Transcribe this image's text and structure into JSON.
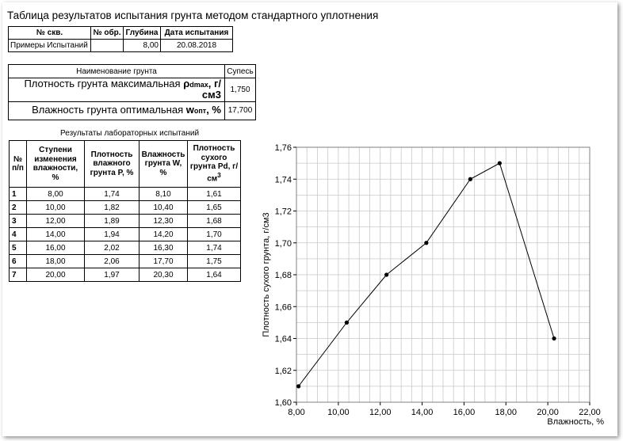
{
  "title": "Таблица результатов испытания грунта методом стандартного уплотнения",
  "sample_table": {
    "headers": [
      "№ скв.",
      "№ обр.",
      "Глубина",
      "Дата испытания"
    ],
    "row": [
      "Примеры Испытаний",
      "",
      "8,00",
      "20.08.2018"
    ]
  },
  "soil_table": {
    "name_label": "Наименование грунта",
    "name_value": "Супесь",
    "density_label": "Плотность грунта максимальная ",
    "density_symbol": "ρ",
    "density_sub": "dmax",
    "density_unit": ", г/см3",
    "density_value": "1,750",
    "moisture_label": "Влажность грунта оптимальная ",
    "moisture_symbol": "w",
    "moisture_sub": "опт",
    "moisture_unit": ", %",
    "moisture_value": "17,700"
  },
  "lab_results": {
    "title": "Результаты лабораторных испытаний",
    "headers": [
      "№ п/п",
      "Ступени изменения влажности, %",
      "Плотность влажного грунта P, %",
      "Влажность грунта W, %",
      "Плотность сухого грунта Pd, г/см",
      "3"
    ],
    "rows": [
      [
        "1",
        "8,00",
        "1,74",
        "8,10",
        "1,61"
      ],
      [
        "2",
        "10,00",
        "1,82",
        "10,40",
        "1,65"
      ],
      [
        "3",
        "12,00",
        "1,89",
        "12,30",
        "1,68"
      ],
      [
        "4",
        "14,00",
        "1,94",
        "14,20",
        "1,70"
      ],
      [
        "5",
        "16,00",
        "2,02",
        "16,30",
        "1,74"
      ],
      [
        "6",
        "18,00",
        "2,06",
        "17,70",
        "1,75"
      ],
      [
        "7",
        "20,00",
        "1,97",
        "20,30",
        "1,64"
      ]
    ]
  },
  "chart_data": {
    "type": "line",
    "xlabel": "Влажность, %",
    "ylabel": "Плотность сухого грунта, г/см3",
    "xlim": [
      8,
      22
    ],
    "ylim": [
      1.6,
      1.76
    ],
    "x_ticks": [
      "8,00",
      "10,00",
      "12,00",
      "14,00",
      "16,00",
      "18,00",
      "20,00",
      "22,00"
    ],
    "y_ticks": [
      "1,60",
      "1,62",
      "1,64",
      "1,66",
      "1,68",
      "1,70",
      "1,72",
      "1,74",
      "1,76"
    ],
    "grid": true,
    "x": [
      8.1,
      10.4,
      12.3,
      14.2,
      16.3,
      17.7,
      20.3
    ],
    "y": [
      1.61,
      1.65,
      1.68,
      1.7,
      1.74,
      1.75,
      1.64
    ],
    "line_color": "#000000",
    "grid_color": "#c8c8c8"
  }
}
